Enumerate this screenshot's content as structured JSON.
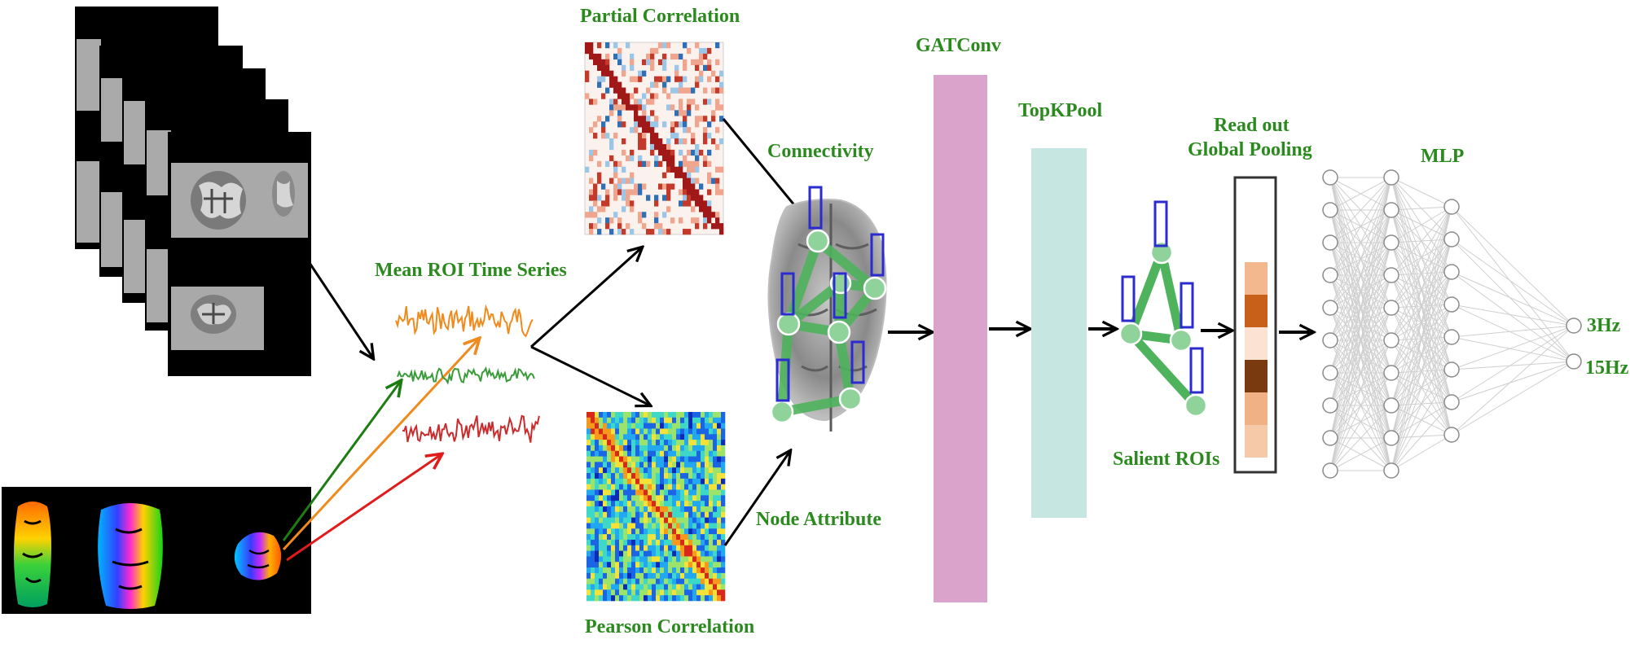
{
  "labels": {
    "partial_correlation": "Partial Correlation",
    "pearson_correlation": "Pearson Correlation",
    "mean_roi_time_series": "Mean ROI Time Series",
    "connectivity": "Connectivity",
    "node_attribute": "Node Attribute",
    "gatconv": "GATConv",
    "topkpool": "TopKPool",
    "salient_rois": "Salient ROIs",
    "readout_line1": "Read out",
    "readout_line2": "Global Pooling",
    "mlp": "MLP"
  },
  "outputs": [
    "3Hz",
    "15Hz"
  ],
  "colors": {
    "label_green": "#2b8a1e",
    "gatconv_bar": "#d9a3cc",
    "topkpool_bar": "#c6e7e1",
    "graph_node": "#8fd39a",
    "graph_edge": "#4fb35d",
    "roi_box": "#2b2bd0",
    "series_orange": "#f08a1c",
    "series_green": "#3a9b3a",
    "series_red": "#cc2b2b"
  },
  "readout_cells": [
    "#ffffff",
    "#f3b88d",
    "#c8601a",
    "#fbe2d2",
    "#7a3a10",
    "#f0b285",
    "#f6c9a8"
  ]
}
